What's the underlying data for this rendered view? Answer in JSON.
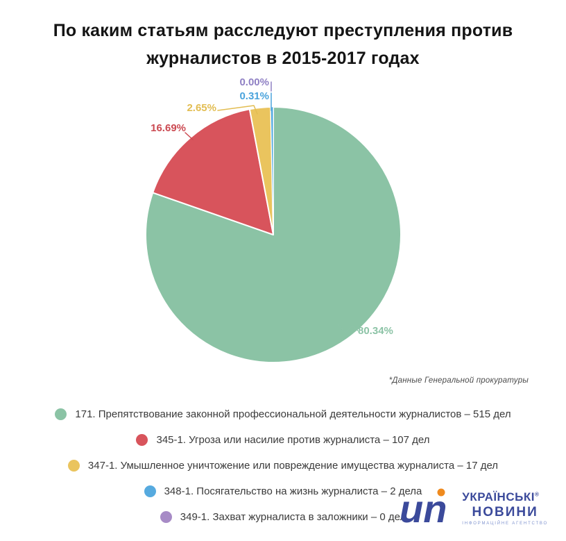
{
  "title": {
    "line1": "По каким статьям расследуют преступления против",
    "line2": "журналистов в 2015-2017 годах"
  },
  "footnote": "*Данные Генеральной прокуратуры",
  "chart_data": {
    "type": "pie",
    "title": "По каким статьям расследуют преступления против журналистов в 2015-2017 годах",
    "start_angle_deg": 0,
    "direction": "clockwise",
    "legend_position": "bottom",
    "slices": [
      {
        "article": "171",
        "legend_label": "171. Препятствование законной профессиональной деятельности журналистов – 515 дел",
        "cases": 515,
        "percent": 80.34,
        "percent_label": "80.34%",
        "color": "#8bc3a5",
        "label_color": "#8cc3a6"
      },
      {
        "article": "345-1",
        "legend_label": "345-1. Угроза или насилие против журналиста – 107 дел",
        "cases": 107,
        "percent": 16.69,
        "percent_label": "16.69%",
        "color": "#d8545c",
        "label_color": "#cb4a52"
      },
      {
        "article": "347-1",
        "legend_label": "347-1. Умышленное уничтожение или повреждение имущества журналиста – 17 дел",
        "cases": 17,
        "percent": 2.65,
        "percent_label": "2.65%",
        "color": "#eac45e",
        "label_color": "#e2bd52"
      },
      {
        "article": "348-1",
        "legend_label": "348-1. Посягательство на жизнь журналиста – 2 дела",
        "cases": 2,
        "percent": 0.31,
        "percent_label": "0.31%",
        "color": "#56aadf",
        "label_color": "#4aa3dc"
      },
      {
        "article": "349-1",
        "legend_label": "349-1. Захват журналиста в заложники – 0 дел",
        "cases": 0,
        "percent": 0.0,
        "percent_label": "0.00%",
        "color": "#a78bc6",
        "label_color": "#8f80c4"
      }
    ]
  },
  "logo": {
    "mark": "un",
    "name_line1": "УКРАЇНСЬКІ",
    "registered": "®",
    "name_line2": "НОВИНИ",
    "tagline": "ІНФОРМАЦІЙНЕ АГЕНТСТВО",
    "brand_color": "#3b4a9b",
    "dot_color": "#ef8a1e"
  }
}
